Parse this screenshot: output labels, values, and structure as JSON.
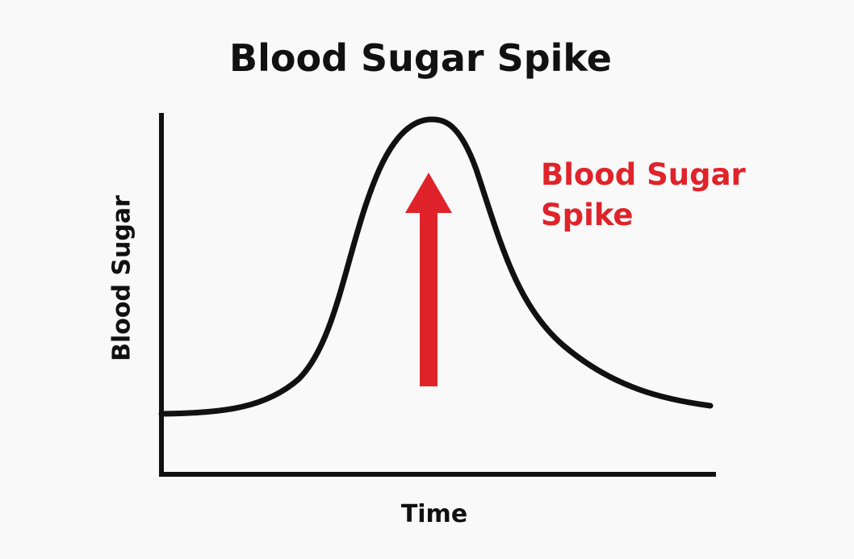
{
  "title": "Blood Sugar Spike",
  "y_axis_label": "Blood Sugar",
  "x_axis_label": "Time",
  "annotation": "Blood Sugar Spike"
}
